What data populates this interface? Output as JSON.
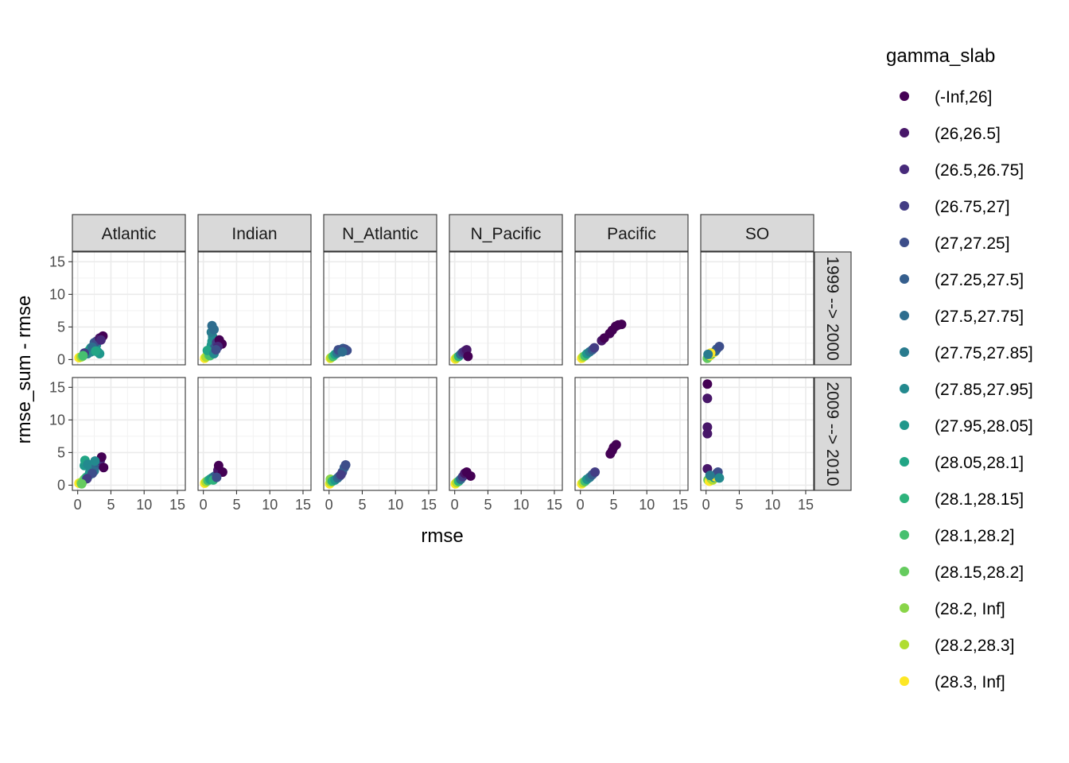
{
  "chart_data": {
    "type": "scatter",
    "xlabel": "rmse",
    "ylabel": "rmse_sum - rmse",
    "xlim": [
      -0.8,
      16.2
    ],
    "ylim": [
      -0.8,
      16.5
    ],
    "x_ticks": [
      0,
      5,
      10,
      15
    ],
    "y_ticks": [
      0,
      5,
      10,
      15
    ],
    "grid": true,
    "legend_position": "right",
    "columns": [
      "Atlantic",
      "Indian",
      "N_Atlantic",
      "N_Pacific",
      "Pacific",
      "SO"
    ],
    "rows": [
      "1999 --> 2000",
      "2009 --> 2010"
    ],
    "legend": {
      "title": "gamma_slab",
      "entries": [
        {
          "label": "(-Inf,26]",
          "color": "#440154"
        },
        {
          "label": "(26,26.5]",
          "color": "#481769"
        },
        {
          "label": "(26.5,26.75]",
          "color": "#472A7A"
        },
        {
          "label": "(26.75,27]",
          "color": "#433D84"
        },
        {
          "label": "(27,27.25]",
          "color": "#3D4E8A"
        },
        {
          "label": "(27.25,27.5]",
          "color": "#355E8D"
        },
        {
          "label": "(27.5,27.75]",
          "color": "#2E6D8E"
        },
        {
          "label": "(27.75,27.85]",
          "color": "#297B8E"
        },
        {
          "label": "(27.85,27.95]",
          "color": "#23898E"
        },
        {
          "label": "(27.95,28.05]",
          "color": "#1F978B"
        },
        {
          "label": "(28.05,28.1]",
          "color": "#21A585"
        },
        {
          "label": "(28.1,28.15]",
          "color": "#2EB37C"
        },
        {
          "label": "(28.1,28.2]",
          "color": "#46C06F"
        },
        {
          "label": "(28.15,28.2]",
          "color": "#65CB5E"
        },
        {
          "label": "(28.2, Inf]",
          "color": "#89D548"
        },
        {
          "label": "(28.2,28.3]",
          "color": "#B0DD2F"
        },
        {
          "label": "(28.3, Inf]",
          "color": "#FDE725"
        }
      ]
    },
    "panels": [
      {
        "column": "Atlantic",
        "row": "1999 --> 2000",
        "points": [
          [
            0.2,
            0.3,
            16
          ],
          [
            0.5,
            0.4,
            15
          ],
          [
            0.7,
            0.5,
            14
          ],
          [
            1.0,
            0.8,
            13
          ],
          [
            1.2,
            1.0,
            12
          ],
          [
            1.5,
            1.2,
            11
          ],
          [
            1.8,
            1.5,
            10
          ],
          [
            2.0,
            1.8,
            9
          ],
          [
            2.3,
            2.0,
            9
          ],
          [
            2.6,
            1.5,
            10
          ],
          [
            2.8,
            2.2,
            8
          ],
          [
            3.0,
            1.2,
            9
          ],
          [
            3.3,
            0.9,
            9
          ],
          [
            1.5,
            0.9,
            7
          ],
          [
            2.0,
            1.2,
            8
          ],
          [
            2.5,
            2.6,
            5
          ],
          [
            2.8,
            2.8,
            4
          ],
          [
            3.3,
            3.3,
            1
          ],
          [
            3.8,
            3.6,
            0
          ],
          [
            3.5,
            3.0,
            2
          ],
          [
            2.2,
            1.9,
            6
          ],
          [
            1.0,
            1.0,
            3
          ],
          [
            0.8,
            0.6,
            12
          ],
          [
            2.7,
            1.3,
            10
          ]
        ]
      },
      {
        "column": "Indian",
        "row": "1999 --> 2000",
        "points": [
          [
            0.2,
            0.2,
            16
          ],
          [
            0.4,
            0.4,
            15
          ],
          [
            0.8,
            0.7,
            13
          ],
          [
            1.0,
            1.2,
            11
          ],
          [
            1.1,
            1.6,
            10
          ],
          [
            1.2,
            2.2,
            9
          ],
          [
            1.3,
            2.8,
            9
          ],
          [
            1.4,
            3.5,
            8
          ],
          [
            1.2,
            4.2,
            7
          ],
          [
            1.3,
            5.2,
            6
          ],
          [
            1.6,
            4.6,
            6
          ],
          [
            1.5,
            1.2,
            10
          ],
          [
            1.7,
            1.8,
            5
          ],
          [
            2.0,
            2.6,
            3
          ],
          [
            2.4,
            3.0,
            0
          ],
          [
            2.8,
            2.4,
            0
          ],
          [
            2.2,
            2.0,
            2
          ],
          [
            1.0,
            0.6,
            12
          ],
          [
            0.6,
            1.4,
            10
          ],
          [
            1.6,
            0.9,
            8
          ],
          [
            1.9,
            1.5,
            4
          ]
        ]
      },
      {
        "column": "N_Atlantic",
        "row": "1999 --> 2000",
        "points": [
          [
            0.2,
            0.2,
            16
          ],
          [
            0.3,
            0.3,
            15
          ],
          [
            0.6,
            0.5,
            12
          ],
          [
            0.9,
            0.8,
            10
          ],
          [
            1.2,
            1.0,
            7
          ],
          [
            1.5,
            1.2,
            6
          ],
          [
            1.8,
            1.5,
            5
          ],
          [
            2.1,
            1.7,
            5
          ],
          [
            2.4,
            1.6,
            4
          ],
          [
            2.7,
            1.4,
            4
          ],
          [
            1.4,
            1.5,
            4
          ],
          [
            2.0,
            1.2,
            6
          ]
        ]
      },
      {
        "column": "N_Pacific",
        "row": "1999 --> 2000",
        "points": [
          [
            0.1,
            0.1,
            16
          ],
          [
            0.3,
            0.3,
            15
          ],
          [
            0.6,
            0.5,
            11
          ],
          [
            0.9,
            0.8,
            6
          ],
          [
            1.2,
            1.1,
            3
          ],
          [
            1.5,
            1.3,
            2
          ],
          [
            1.8,
            1.5,
            1
          ],
          [
            2.0,
            0.5,
            0
          ]
        ]
      },
      {
        "column": "Pacific",
        "row": "1999 --> 2000",
        "points": [
          [
            0.2,
            0.2,
            16
          ],
          [
            0.4,
            0.4,
            15
          ],
          [
            0.7,
            0.6,
            12
          ],
          [
            1.0,
            0.9,
            9
          ],
          [
            1.4,
            1.2,
            7
          ],
          [
            1.8,
            1.5,
            5
          ],
          [
            2.1,
            1.8,
            3
          ],
          [
            3.2,
            2.9,
            1
          ],
          [
            3.6,
            3.3,
            0
          ],
          [
            4.4,
            4.0,
            0
          ],
          [
            4.8,
            4.5,
            0
          ],
          [
            5.3,
            5.1,
            0
          ],
          [
            5.7,
            5.3,
            0
          ],
          [
            6.2,
            5.4,
            0
          ]
        ]
      },
      {
        "column": "SO",
        "row": "1999 --> 2000",
        "points": [
          [
            0.2,
            0.2,
            13
          ],
          [
            0.4,
            0.5,
            12
          ],
          [
            0.6,
            0.6,
            16
          ],
          [
            0.8,
            0.8,
            14
          ],
          [
            1.0,
            1.0,
            9
          ],
          [
            1.2,
            1.1,
            16
          ],
          [
            1.4,
            1.3,
            6
          ],
          [
            1.6,
            1.6,
            5
          ],
          [
            2.0,
            2.0,
            4
          ],
          [
            0.7,
            1.0,
            16
          ],
          [
            0.3,
            0.8,
            7
          ]
        ]
      },
      {
        "column": "Atlantic",
        "row": "2009 --> 2010",
        "points": [
          [
            0.2,
            0.3,
            16
          ],
          [
            0.5,
            0.4,
            15
          ],
          [
            0.8,
            0.6,
            14
          ],
          [
            1.0,
            0.9,
            13
          ],
          [
            1.3,
            1.2,
            11
          ],
          [
            1.6,
            1.4,
            10
          ],
          [
            1.8,
            1.9,
            9
          ],
          [
            1.0,
            3.0,
            9
          ],
          [
            1.1,
            3.8,
            10
          ],
          [
            1.5,
            3.2,
            8
          ],
          [
            2.0,
            2.6,
            8
          ],
          [
            2.5,
            2.2,
            7
          ],
          [
            2.8,
            3.0,
            6
          ],
          [
            3.0,
            3.5,
            5
          ],
          [
            3.4,
            3.8,
            2
          ],
          [
            3.6,
            4.3,
            0
          ],
          [
            3.9,
            2.7,
            0
          ],
          [
            2.2,
            1.8,
            4
          ],
          [
            1.4,
            1.0,
            3
          ],
          [
            2.6,
            3.7,
            8
          ],
          [
            0.6,
            0.2,
            13
          ]
        ]
      },
      {
        "column": "Indian",
        "row": "2009 --> 2010",
        "points": [
          [
            0.2,
            0.3,
            16
          ],
          [
            0.4,
            0.5,
            15
          ],
          [
            0.7,
            0.7,
            12
          ],
          [
            1.0,
            0.9,
            10
          ],
          [
            1.3,
            1.1,
            9
          ],
          [
            1.6,
            1.3,
            7
          ],
          [
            1.9,
            1.5,
            5
          ],
          [
            2.2,
            2.3,
            1
          ],
          [
            2.3,
            3.0,
            0
          ],
          [
            2.9,
            2.0,
            0
          ],
          [
            1.5,
            0.8,
            11
          ],
          [
            2.0,
            1.2,
            4
          ]
        ]
      },
      {
        "column": "N_Atlantic",
        "row": "2009 --> 2010",
        "points": [
          [
            0.1,
            0.2,
            16
          ],
          [
            0.2,
            0.5,
            15
          ],
          [
            0.2,
            0.9,
            14
          ],
          [
            0.5,
            0.6,
            11
          ],
          [
            0.9,
            0.8,
            9
          ],
          [
            1.3,
            1.1,
            6
          ],
          [
            1.6,
            1.4,
            5
          ],
          [
            2.0,
            2.0,
            4
          ],
          [
            2.3,
            2.7,
            5
          ],
          [
            2.5,
            3.1,
            4
          ],
          [
            1.8,
            1.6,
            3
          ]
        ]
      },
      {
        "column": "N_Pacific",
        "row": "2009 --> 2010",
        "points": [
          [
            0.1,
            0.2,
            16
          ],
          [
            0.3,
            0.4,
            15
          ],
          [
            0.6,
            0.6,
            11
          ],
          [
            0.9,
            0.9,
            6
          ],
          [
            1.2,
            1.3,
            3
          ],
          [
            1.5,
            1.8,
            1
          ],
          [
            1.8,
            2.0,
            0
          ],
          [
            2.4,
            1.4,
            0
          ]
        ]
      },
      {
        "column": "Pacific",
        "row": "2009 --> 2010",
        "points": [
          [
            0.2,
            0.2,
            16
          ],
          [
            0.4,
            0.4,
            15
          ],
          [
            0.7,
            0.6,
            12
          ],
          [
            1.0,
            0.9,
            9
          ],
          [
            1.4,
            1.2,
            7
          ],
          [
            1.8,
            1.6,
            5
          ],
          [
            2.2,
            2.0,
            3
          ],
          [
            4.5,
            4.8,
            0
          ],
          [
            4.8,
            5.3,
            0
          ],
          [
            5.0,
            5.8,
            0
          ],
          [
            5.4,
            6.2,
            0
          ]
        ]
      },
      {
        "column": "SO",
        "row": "2009 --> 2010",
        "points": [
          [
            0.2,
            15.5,
            0
          ],
          [
            0.2,
            13.3,
            1
          ],
          [
            0.2,
            8.9,
            1
          ],
          [
            0.2,
            7.9,
            1
          ],
          [
            0.2,
            2.5,
            1
          ],
          [
            0.3,
            0.8,
            13
          ],
          [
            0.5,
            0.6,
            16
          ],
          [
            0.8,
            1.0,
            14
          ],
          [
            1.0,
            0.8,
            15
          ],
          [
            1.2,
            1.2,
            9
          ],
          [
            1.4,
            1.3,
            16
          ],
          [
            1.6,
            1.8,
            5
          ],
          [
            1.8,
            2.0,
            4
          ],
          [
            2.0,
            1.1,
            8
          ],
          [
            0.6,
            1.5,
            7
          ]
        ]
      }
    ]
  }
}
